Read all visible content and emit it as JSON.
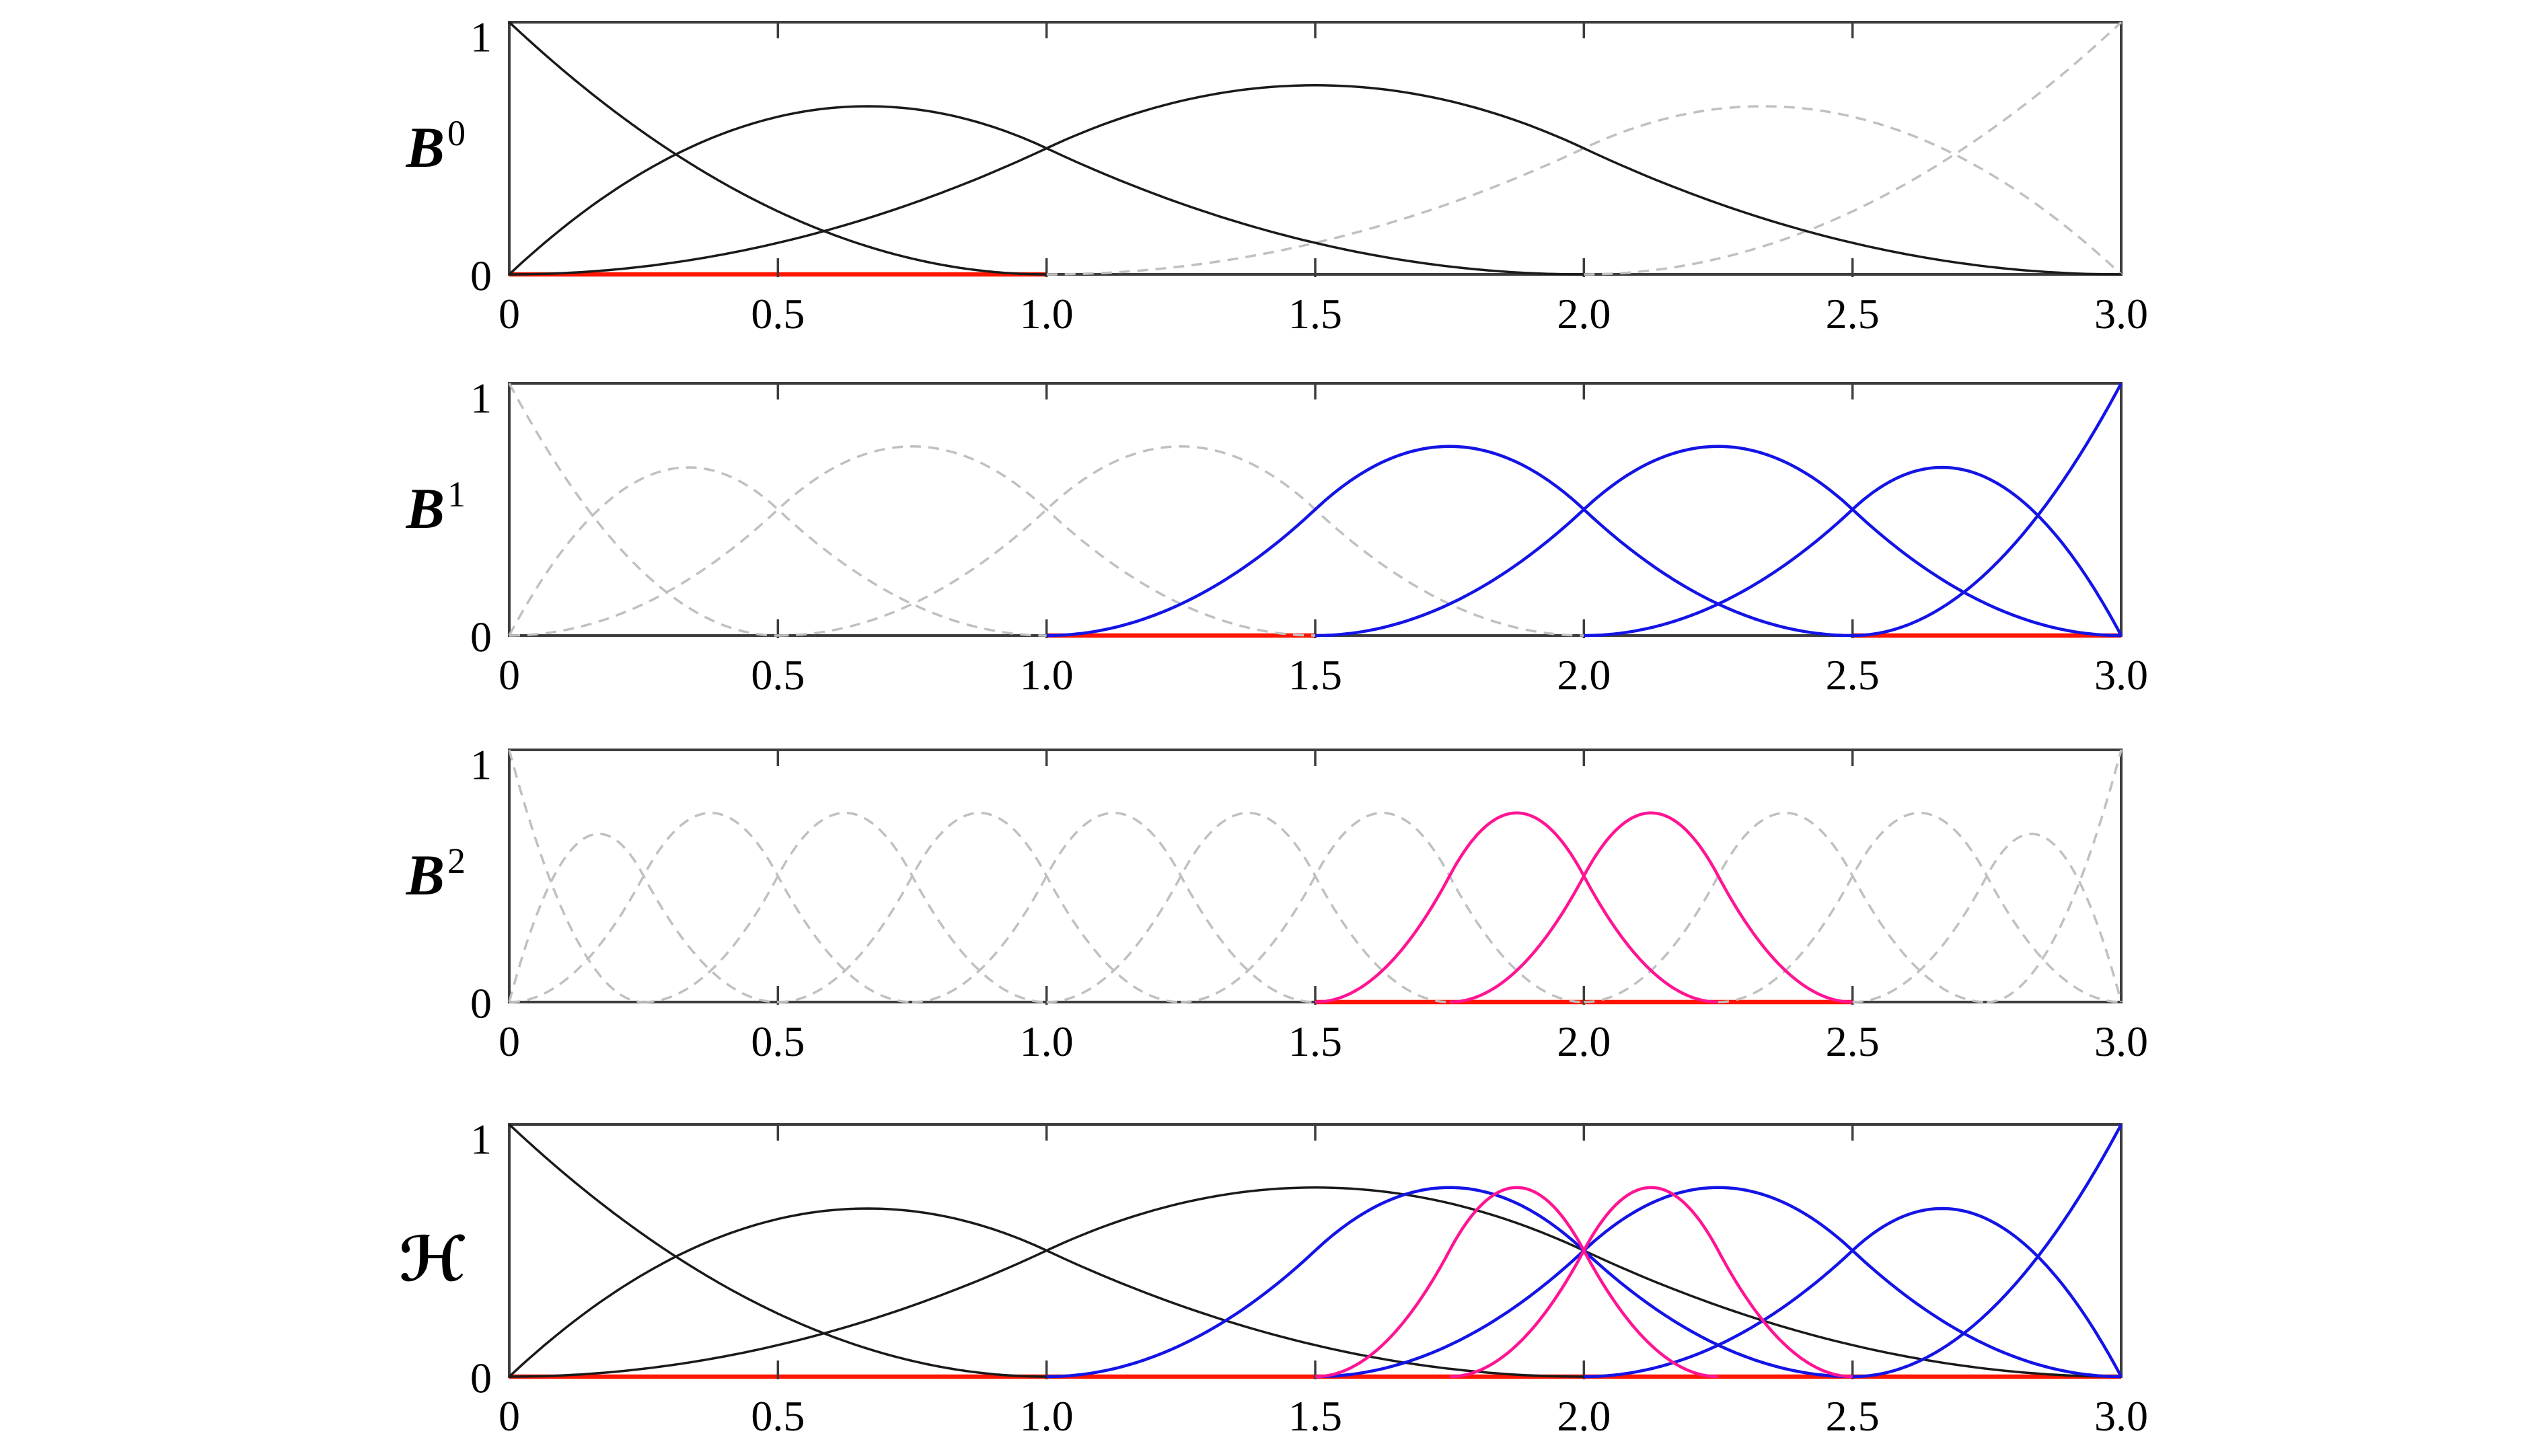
{
  "figure": {
    "background": "#FFFFFF",
    "colors": {
      "black": "#1A1A1A",
      "blue": "#1414E6",
      "magenta": "#FF1493",
      "gray": "#C0C0C0",
      "red": "#FF1400",
      "frame": "#3D3D3D",
      "text": "#000000"
    }
  },
  "axis": {
    "x_range": [
      0,
      3
    ],
    "y_range": [
      0,
      1
    ],
    "x_tick_values": [
      0,
      0.5,
      1,
      1.5,
      2,
      2.5,
      3
    ],
    "x_tick_labels": [
      "0",
      "0.5",
      "1.0",
      "1.5",
      "2.0",
      "2.5",
      "3.0"
    ],
    "inner_tick_values": [
      0.5,
      1,
      1.5,
      2,
      2.5
    ],
    "y_tick_labels": [
      "0",
      "1"
    ],
    "grid": false,
    "legend": false
  },
  "chart_data": [
    {
      "id": "B0",
      "type": "line",
      "label": {
        "base": "B",
        "sup": "0"
      },
      "degree": 2,
      "knot_step": 1.0,
      "x_range": [
        0,
        3
      ],
      "y_range": [
        0,
        1
      ],
      "series": [
        {
          "name": "B0_3",
          "knots": [
            1,
            2,
            3,
            3
          ],
          "style": "gray"
        },
        {
          "name": "B0_4",
          "knots": [
            2,
            3,
            3,
            3
          ],
          "style": "gray"
        },
        {
          "name": "B0_0",
          "knots": [
            0,
            0,
            0,
            1
          ],
          "style": "black"
        },
        {
          "name": "B0_1",
          "knots": [
            0,
            0,
            1,
            2
          ],
          "style": "black"
        },
        {
          "name": "B0_2",
          "knots": [
            0,
            1,
            2,
            3
          ],
          "style": "black"
        }
      ],
      "red_segments": [
        [
          0,
          1
        ]
      ]
    },
    {
      "id": "B1",
      "type": "line",
      "label": {
        "base": "B",
        "sup": "1"
      },
      "degree": 2,
      "knot_step": 0.5,
      "x_range": [
        0,
        3
      ],
      "y_range": [
        0,
        1
      ],
      "series": [
        {
          "name": "B1_0",
          "knots": [
            0,
            0,
            0,
            0.5
          ],
          "style": "gray"
        },
        {
          "name": "B1_1",
          "knots": [
            0,
            0,
            0.5,
            1
          ],
          "style": "gray"
        },
        {
          "name": "B1_2",
          "knots": [
            0,
            0.5,
            1,
            1.5
          ],
          "style": "gray"
        },
        {
          "name": "B1_3",
          "knots": [
            0.5,
            1,
            1.5,
            2
          ],
          "style": "gray"
        },
        {
          "name": "B1_4",
          "knots": [
            1,
            1.5,
            2,
            2.5
          ],
          "style": "blue"
        },
        {
          "name": "B1_5",
          "knots": [
            1.5,
            2,
            2.5,
            3
          ],
          "style": "blue"
        },
        {
          "name": "B1_6",
          "knots": [
            2,
            2.5,
            3,
            3
          ],
          "style": "blue"
        },
        {
          "name": "B1_7",
          "knots": [
            2.5,
            3,
            3,
            3
          ],
          "style": "blue"
        }
      ],
      "red_segments": [
        [
          1,
          1.5
        ],
        [
          2.5,
          3
        ]
      ]
    },
    {
      "id": "B2",
      "type": "line",
      "label": {
        "base": "B",
        "sup": "2"
      },
      "degree": 2,
      "knot_step": 0.25,
      "x_range": [
        0,
        3
      ],
      "y_range": [
        0,
        1
      ],
      "series": [
        {
          "name": "B2_0",
          "knots": [
            0,
            0,
            0,
            0.25
          ],
          "style": "gray"
        },
        {
          "name": "B2_1",
          "knots": [
            0,
            0,
            0.25,
            0.5
          ],
          "style": "gray"
        },
        {
          "name": "B2_2",
          "knots": [
            0,
            0.25,
            0.5,
            0.75
          ],
          "style": "gray"
        },
        {
          "name": "B2_3",
          "knots": [
            0.25,
            0.5,
            0.75,
            1
          ],
          "style": "gray"
        },
        {
          "name": "B2_4",
          "knots": [
            0.5,
            0.75,
            1,
            1.25
          ],
          "style": "gray"
        },
        {
          "name": "B2_5",
          "knots": [
            0.75,
            1,
            1.25,
            1.5
          ],
          "style": "gray"
        },
        {
          "name": "B2_6",
          "knots": [
            1,
            1.25,
            1.5,
            1.75
          ],
          "style": "gray"
        },
        {
          "name": "B2_7",
          "knots": [
            1.25,
            1.5,
            1.75,
            2
          ],
          "style": "gray"
        },
        {
          "name": "B2_10",
          "knots": [
            2,
            2.25,
            2.5,
            2.75
          ],
          "style": "gray"
        },
        {
          "name": "B2_11",
          "knots": [
            2.25,
            2.5,
            2.75,
            3
          ],
          "style": "gray"
        },
        {
          "name": "B2_12",
          "knots": [
            2.5,
            2.75,
            3,
            3
          ],
          "style": "gray"
        },
        {
          "name": "B2_13",
          "knots": [
            2.75,
            3,
            3,
            3
          ],
          "style": "gray"
        },
        {
          "name": "B2_8",
          "knots": [
            1.5,
            1.75,
            2,
            2.25
          ],
          "style": "magenta"
        },
        {
          "name": "B2_9",
          "knots": [
            1.75,
            2,
            2.25,
            2.5
          ],
          "style": "magenta"
        }
      ],
      "red_segments": [
        [
          1.5,
          2.5
        ]
      ]
    },
    {
      "id": "H",
      "type": "line",
      "label": {
        "base": "ℋ",
        "sup": ""
      },
      "degree": 2,
      "x_range": [
        0,
        3
      ],
      "y_range": [
        0,
        1
      ],
      "series": [
        {
          "name": "B0_0",
          "knots": [
            0,
            0,
            0,
            1
          ],
          "style": "black"
        },
        {
          "name": "B0_1",
          "knots": [
            0,
            0,
            1,
            2
          ],
          "style": "black"
        },
        {
          "name": "B0_2",
          "knots": [
            0,
            1,
            2,
            3
          ],
          "style": "black"
        },
        {
          "name": "B1_4",
          "knots": [
            1,
            1.5,
            2,
            2.5
          ],
          "style": "blue"
        },
        {
          "name": "B1_5",
          "knots": [
            1.5,
            2,
            2.5,
            3
          ],
          "style": "blue"
        },
        {
          "name": "B1_6",
          "knots": [
            2,
            2.5,
            3,
            3
          ],
          "style": "blue"
        },
        {
          "name": "B1_7",
          "knots": [
            2.5,
            3,
            3,
            3
          ],
          "style": "blue"
        },
        {
          "name": "B2_8",
          "knots": [
            1.5,
            1.75,
            2,
            2.25
          ],
          "style": "magenta"
        },
        {
          "name": "B2_9",
          "knots": [
            1.75,
            2,
            2.25,
            2.5
          ],
          "style": "magenta"
        }
      ],
      "red_segments": [
        [
          0,
          3
        ]
      ]
    }
  ]
}
